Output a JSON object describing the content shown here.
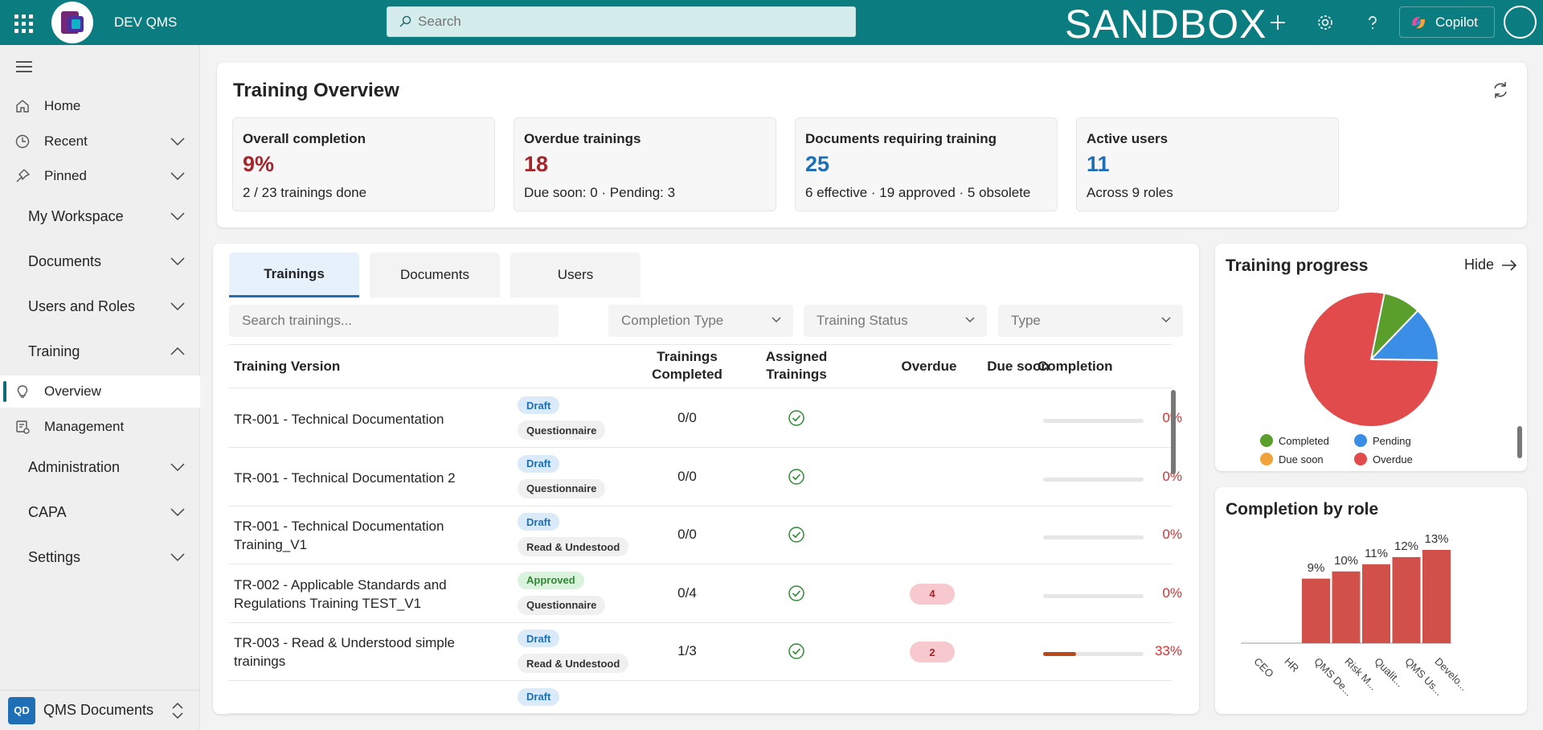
{
  "header": {
    "app_name": "DEV QMS",
    "search_placeholder": "Search",
    "environment": "SANDBOX",
    "copilot_label": "Copilot"
  },
  "sidebar": {
    "items": [
      {
        "label": "Home",
        "icon": "home-icon"
      },
      {
        "label": "Recent",
        "icon": "clock-icon"
      },
      {
        "label": "Pinned",
        "icon": "pin-icon"
      }
    ],
    "groups": [
      {
        "label": "My Workspace"
      },
      {
        "label": "Documents"
      },
      {
        "label": "Users and Roles"
      },
      {
        "label": "Training"
      },
      {
        "label": "Administration"
      },
      {
        "label": "CAPA"
      },
      {
        "label": "Settings"
      }
    ],
    "training_items": [
      {
        "label": "Overview",
        "icon": "lightbulb-icon",
        "active": true
      },
      {
        "label": "Management",
        "icon": "management-icon"
      }
    ],
    "footer": {
      "initials": "QD",
      "label": "QMS Documents"
    }
  },
  "overview": {
    "title": "Training Overview",
    "kpis": [
      {
        "title": "Overall completion",
        "value": "9%",
        "sub": "2 / 23 trainings done",
        "color": "#a4262c"
      },
      {
        "title": "Overdue trainings",
        "value": "18",
        "sub": "Due soon: 0 · Pending: 3",
        "color": "#a4262c"
      },
      {
        "title": "Documents requiring training",
        "value": "25",
        "sub": "6 effective · 19 approved · 5 obsolete",
        "color": "#1e6fb5"
      },
      {
        "title": "Active users",
        "value": "11",
        "sub": "Across 9 roles",
        "color": "#1e6fb5"
      }
    ]
  },
  "trainings": {
    "tabs": [
      "Trainings",
      "Documents",
      "Users"
    ],
    "search_placeholder": "Search trainings...",
    "filters": [
      "Completion Type",
      "Training Status",
      "Type"
    ],
    "columns": {
      "version": "Training Version",
      "completed": "Trainings Completed",
      "assigned": "Assigned Trainings",
      "overdue": "Overdue",
      "due_soon": "Due soon",
      "completion": "Completion"
    },
    "rows": [
      {
        "name": "TR-001 - Technical Documentation",
        "status": "Draft",
        "type": "Questionnaire",
        "completed": "0/0",
        "overdue": "",
        "progress": 0,
        "completion": "0%"
      },
      {
        "name": "TR-001 - Technical Documentation 2",
        "status": "Draft",
        "type": "Questionnaire",
        "completed": "0/0",
        "overdue": "",
        "progress": 0,
        "completion": "0%"
      },
      {
        "name": "TR-001 - Technical Documentation Training_V1",
        "status": "Draft",
        "type": "Read & Undestood",
        "completed": "0/0",
        "overdue": "",
        "progress": 0,
        "completion": "0%"
      },
      {
        "name": "TR-002 - Applicable Standards and Regulations Training TEST_V1",
        "status": "Approved",
        "type": "Questionnaire",
        "completed": "0/4",
        "overdue": "4",
        "progress": 0,
        "completion": "0%"
      },
      {
        "name": "TR-003 - Read & Understood simple trainings",
        "status": "Draft",
        "type": "Read & Undestood",
        "completed": "1/3",
        "overdue": "2",
        "progress": 33,
        "completion": "33%"
      },
      {
        "name": "",
        "status": "Draft",
        "type": "",
        "completed": "",
        "overdue": "",
        "progress": 0,
        "completion": ""
      }
    ]
  },
  "progress": {
    "title": "Training progress",
    "hide_label": "Hide",
    "chart_data": {
      "type": "pie",
      "slices": [
        {
          "name": "Completed",
          "value": 9,
          "color": "#5a9e2b"
        },
        {
          "name": "Pending",
          "value": 13,
          "color": "#3a8ee6"
        },
        {
          "name": "Due soon",
          "value": 0,
          "color": "#f2a23a"
        },
        {
          "name": "Overdue",
          "value": 78,
          "color": "#e24b4b"
        }
      ]
    }
  },
  "role": {
    "title": "Completion by role",
    "chart_data": {
      "type": "bar",
      "categories": [
        "CEO",
        "HR",
        "QMS De...",
        "Risk M...",
        "Qualit...",
        "QMS Us...",
        "Develo..."
      ],
      "values": [
        0,
        0,
        9,
        10,
        11,
        12,
        13
      ],
      "labels": [
        "",
        "",
        "9%",
        "10%",
        "11%",
        "12%",
        "13%"
      ],
      "color": "#d2504a"
    }
  }
}
